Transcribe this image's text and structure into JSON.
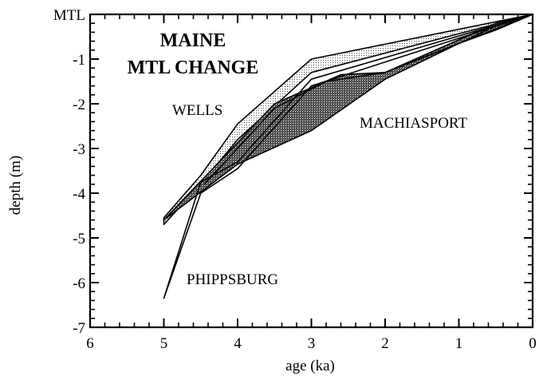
{
  "chart_data": {
    "type": "area",
    "title_lines": [
      "MAINE",
      "MTL CHANGE"
    ],
    "xlabel": "age (ka)",
    "ylabel": "depth (m)",
    "xlim": [
      6,
      0
    ],
    "ylim": [
      -7,
      0
    ],
    "x_reversed": true,
    "x_ticks": [
      6,
      5,
      4,
      3,
      2,
      1,
      0
    ],
    "x_tick_labels": [
      "6",
      "5",
      "4",
      "3",
      "2",
      "1",
      "0"
    ],
    "y_ticks": [
      0,
      -1,
      -2,
      -3,
      -4,
      -5,
      -6,
      -7
    ],
    "y_tick_labels": [
      "MTL",
      "-1",
      "-2",
      "-3",
      "-4",
      "-5",
      "-6",
      "-7"
    ],
    "minor_ticks_per_major": 5,
    "grid": false,
    "series": [
      {
        "name": "WELLS",
        "fill": "light-stipple",
        "upper": [
          [
            5,
            -4.55
          ],
          [
            4.5,
            -3.6
          ],
          [
            4,
            -2.45
          ],
          [
            3,
            -1.0
          ],
          [
            0,
            0
          ]
        ],
        "lower": [
          [
            0,
            0
          ],
          [
            3,
            -1.3
          ],
          [
            4,
            -2.8
          ],
          [
            4.5,
            -3.8
          ],
          [
            5,
            -4.7
          ]
        ]
      },
      {
        "name": "MACHIASPORT",
        "fill": "dark-stipple",
        "upper": [
          [
            3.5,
            -2.0
          ],
          [
            2.6,
            -1.35
          ],
          [
            2.0,
            -1.3
          ],
          [
            0.5,
            -0.2
          ],
          [
            0,
            0
          ]
        ],
        "lower": [
          [
            0,
            0
          ],
          [
            0.5,
            -0.35
          ],
          [
            1.0,
            -0.65
          ],
          [
            2.0,
            -1.45
          ],
          [
            3.0,
            -2.6
          ],
          [
            4.0,
            -3.35
          ],
          [
            5.0,
            -4.6
          ]
        ]
      },
      {
        "name": "PHIPPSBURG",
        "fill": "none",
        "upper": [
          [
            4.5,
            -3.75
          ],
          [
            4.0,
            -3.3
          ],
          [
            3.0,
            -1.45
          ],
          [
            0,
            0
          ]
        ],
        "lower": [
          [
            0,
            0
          ],
          [
            3.0,
            -1.6
          ],
          [
            4.0,
            -3.45
          ],
          [
            4.5,
            -4.0
          ],
          [
            5.0,
            -6.35
          ]
        ]
      }
    ],
    "outlines": [
      [
        [
          4.45,
          -3.8
        ],
        [
          3.5,
          -2.1
        ],
        [
          2.8,
          -1.5
        ],
        [
          2.0,
          -1.3
        ],
        [
          0,
          0
        ]
      ],
      [
        [
          0.95,
          -0.62
        ],
        [
          0.5,
          -0.25
        ],
        [
          0,
          0
        ]
      ]
    ]
  }
}
